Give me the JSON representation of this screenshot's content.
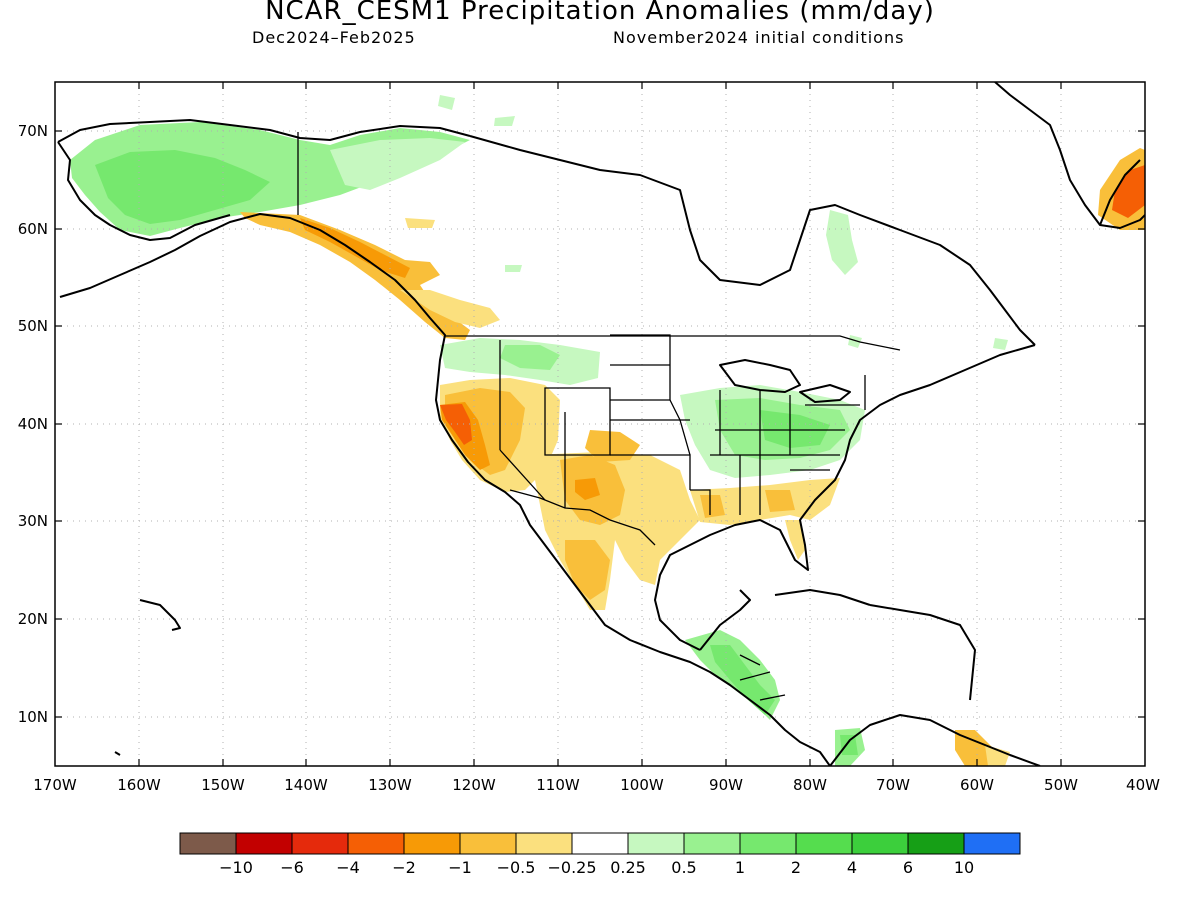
{
  "header": {
    "title": "NCAR_CESM1 Precipitation Anomalies (mm/day)",
    "period": "Dec2024–Feb2025",
    "init": "November2024 initial conditions"
  },
  "map": {
    "lat_labels": [
      "70N",
      "60N",
      "50N",
      "40N",
      "30N",
      "20N",
      "10N"
    ],
    "lon_labels": [
      "170W",
      "160W",
      "150W",
      "140W",
      "130W",
      "120W",
      "110W",
      "100W",
      "90W",
      "80W",
      "70W",
      "60W",
      "50W",
      "40W"
    ],
    "lon_range": [
      -170,
      -40
    ],
    "lat_range": [
      5,
      75
    ],
    "grid": "dotted",
    "projection": "cylindrical"
  },
  "legend": {
    "labels": [
      "−10",
      "−6",
      "−4",
      "−2",
      "−1",
      "−0.5",
      "−0.25",
      "0.25",
      "0.5",
      "1",
      "2",
      "4",
      "6",
      "10"
    ],
    "colors": [
      "#7d5a4a",
      "#c20000",
      "#e52a0c",
      "#f55f05",
      "#f79a06",
      "#f9bf3a",
      "#fbe07e",
      "#ffffff",
      "#c6f8c0",
      "#99f190",
      "#76e86e",
      "#55dd4e",
      "#3ccf3c",
      "#169f16",
      "#1f6ff5"
    ]
  }
}
